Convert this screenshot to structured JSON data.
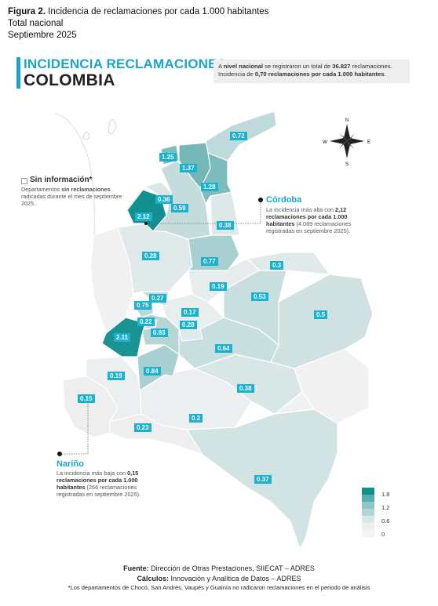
{
  "header": {
    "figure_label": "Figura 2.",
    "figure_title": "Incidencia de reclamaciones por cada 1.000 habitantes",
    "scope": "Total nacional",
    "period": "Septiembre 2025"
  },
  "title": {
    "line1": "INCIDENCIA RECLAMACIONES",
    "line2": "COLOMBIA"
  },
  "info": {
    "p1": "A ",
    "b1": "nivel nacional",
    "p2": " se registraron un total de ",
    "b2": "36.827",
    "p3": " reclamaciones.",
    "p4": "Incidencia de ",
    "b3": "0,70 reclamaciones por cada 1.000 habitantes",
    "p5": "."
  },
  "sin_info": {
    "title": "Sin información*",
    "text_a": "Departamentos ",
    "text_b": "sin reclamaciones",
    "text_c": " radicadas durante el mes de septiembre 2025."
  },
  "cordoba": {
    "name": "Córdoba",
    "t1": "La incidencia más alta con ",
    "b1": "2,12 reclamaciones por cada 1.000 habitantes",
    "t2": " (4.089 reclamaciones registradas en septiembre 2025)."
  },
  "narino": {
    "name": "Nariño",
    "t1": "La incidencia más baja con ",
    "b1": "0,15 reclamaciones por cada 1.000 habitantes",
    "t2": " (266 reclamaciones registradas en septiembre 2025)."
  },
  "values": {
    "guajira": "0.72",
    "atlantico": "1.25",
    "magdalena": "1.37",
    "cesar": "1.28",
    "sucre": "0.36",
    "bolivar": "0.59",
    "cordoba": "2.12",
    "nsantander": "0.38",
    "antioquia": "0.28",
    "santander": "0.77",
    "arauca": "0.3",
    "boyaca": "0.19",
    "casanare": "0.53",
    "caldas": "0.27",
    "risaralda": "0.75",
    "vichada": "0.5",
    "cundinamarca": "0.17",
    "quindio": "0.22",
    "bogota": "0.28",
    "valle": "2.11",
    "tolima": "0.93",
    "meta": "0.64",
    "cauca": "0.19",
    "huila": "0.84",
    "guaviare": "0.38",
    "narino": "0.15",
    "putumayo": "0.23",
    "caqueta": "0.2",
    "amazonas": "0.37"
  },
  "legend": {
    "labels": [
      "1.8",
      "1.2",
      "0.6",
      "0"
    ],
    "colors": [
      "#148f8f",
      "#58aeae",
      "#8fc6c6",
      "#c3dcdc",
      "#e3ecec",
      "#eeeeee"
    ]
  },
  "compass": {
    "n": "N",
    "s": "S",
    "e": "E",
    "w": "W"
  },
  "footer": {
    "source_label": "Fuente:",
    "source_text": " Dirección de Otras Prestaciones, SIIECAT – ADRES",
    "calc_label": "Cálculos:",
    "calc_text": " Innovación y Analítica de Datos – ADRES",
    "note": "*Los departamentos de Chocó, San Andrés, Vaupés y Guainía no radicaron reclamaciones en el periodo de análisis"
  }
}
